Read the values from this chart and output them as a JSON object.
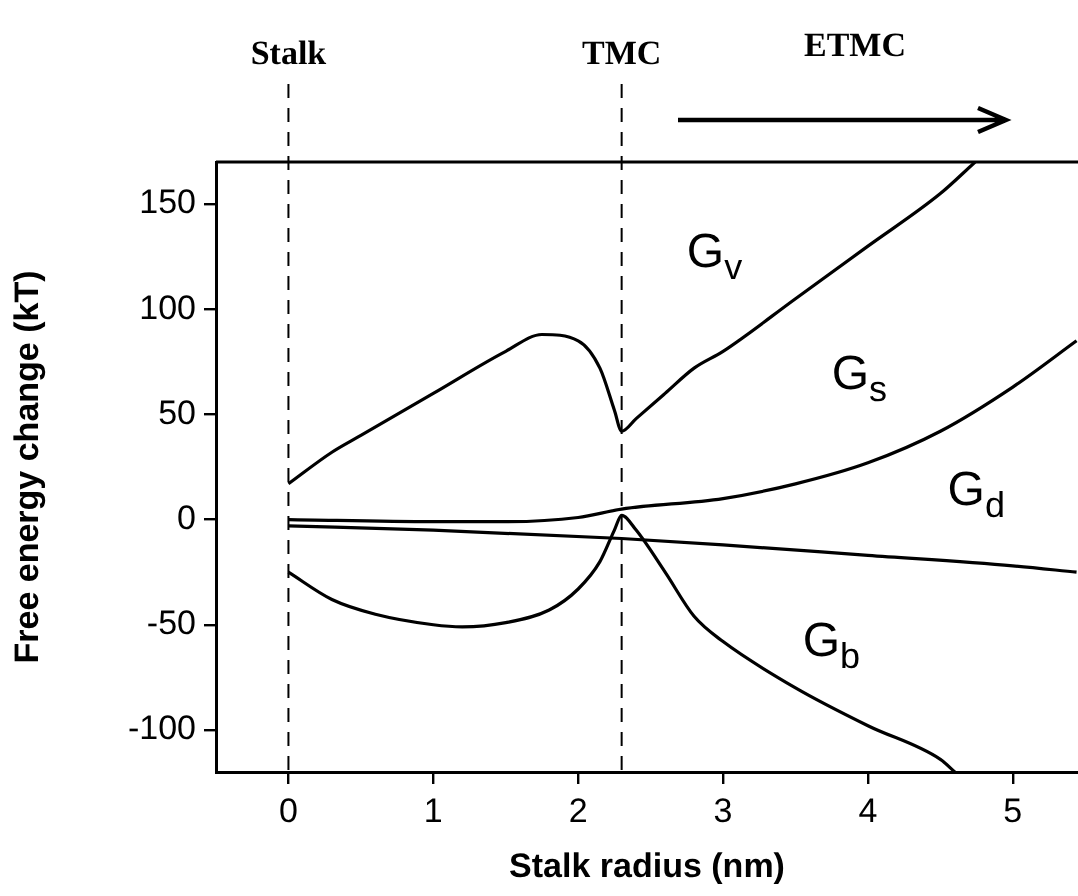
{
  "chart_data": {
    "type": "line",
    "xlabel": "Stalk radius (nm)",
    "ylabel": "Free energy change (kT)",
    "xlim": [
      -0.5,
      5.45
    ],
    "ylim": [
      -120,
      170
    ],
    "xticks": [
      0,
      1,
      2,
      3,
      4,
      5
    ],
    "yticks": [
      -100,
      -50,
      0,
      50,
      100,
      150
    ],
    "grid": false,
    "legend": false,
    "marker": "none",
    "line_style": "solid",
    "series": [
      {
        "name": "G$_{v}$",
        "color": "#000000",
        "x": [
          0,
          0.3,
          0.5,
          1,
          1.5,
          1.75,
          2,
          2.15,
          2.25,
          2.3,
          2.4,
          2.6,
          2.8,
          3,
          3.5,
          4,
          4.5,
          4.74
        ],
        "values": [
          17,
          32,
          40,
          60,
          80,
          88,
          85,
          72,
          52,
          42,
          48,
          60,
          72,
          80,
          105,
          130,
          155,
          170
        ]
      },
      {
        "name": "G$_{s}$",
        "color": "#000000",
        "x": [
          0,
          1,
          1.5,
          2,
          2.3,
          3,
          3.5,
          4,
          4.5,
          5,
          5.44
        ],
        "values": [
          0,
          -1,
          -1,
          1,
          5,
          10,
          17,
          27,
          42,
          63,
          85
        ]
      },
      {
        "name": "G$_{d}$",
        "color": "#000000",
        "x": [
          0,
          1,
          2.3,
          3,
          4,
          5,
          5.44
        ],
        "values": [
          -3,
          -5,
          -9,
          -12,
          -17,
          -22,
          -25
        ]
      },
      {
        "name": "G$_{b}$",
        "color": "#000000",
        "x": [
          0,
          0.3,
          0.6,
          1,
          1.2,
          1.5,
          1.8,
          2,
          2.15,
          2.25,
          2.3,
          2.4,
          2.6,
          2.8,
          3,
          3.5,
          4,
          4.5,
          4.6
        ],
        "values": [
          -25,
          -38,
          -45,
          -50,
          -51,
          -49,
          -43,
          -33,
          -20,
          -5,
          2,
          -5,
          -25,
          -46,
          -58,
          -80,
          -98,
          -114,
          -120
        ]
      }
    ],
    "ref_lines": [
      {
        "axis": "x",
        "value": 0,
        "label": "Stalk",
        "line_style": "dashed"
      },
      {
        "axis": "x",
        "value": 2.3,
        "label": "TMC",
        "line_style": "dashed"
      }
    ],
    "annotations": [
      "ETMC"
    ]
  }
}
